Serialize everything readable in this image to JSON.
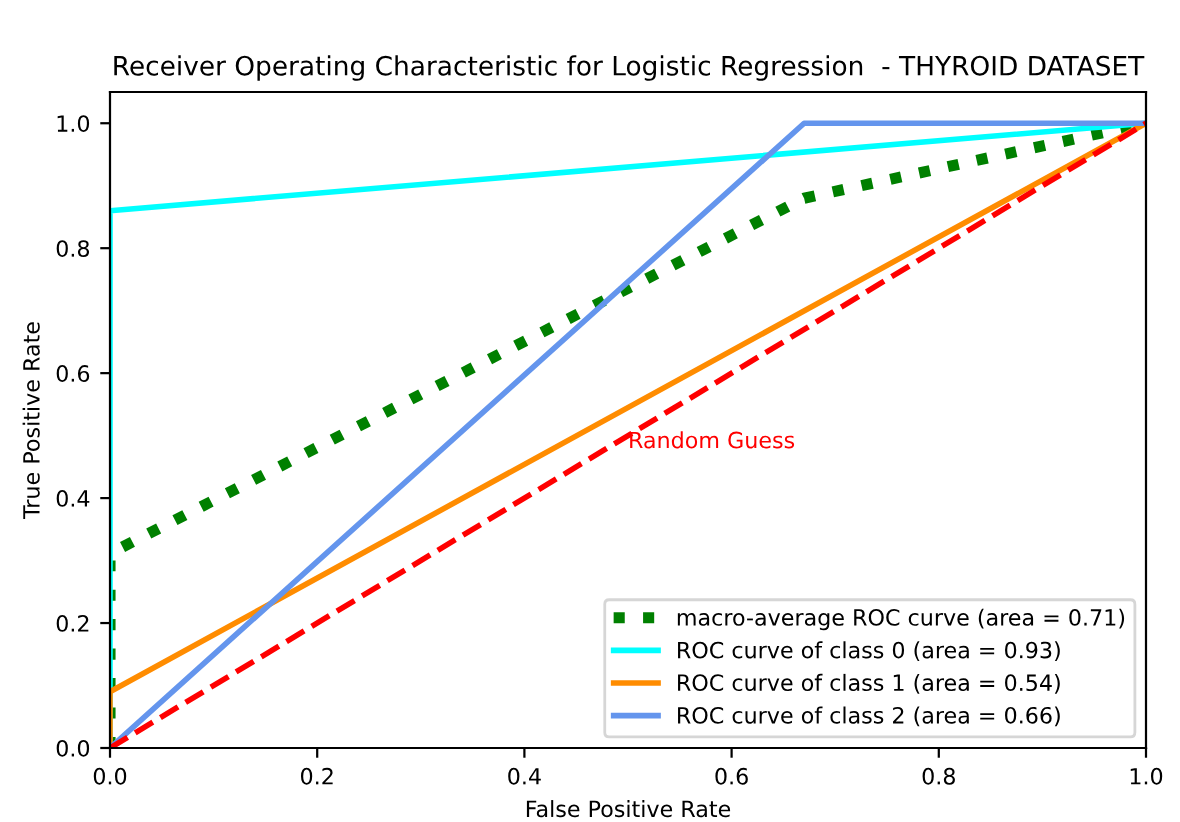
{
  "chart_data": {
    "type": "line",
    "title": "Receiver Operating Characteristic for Logistic Regression  - THYROID DATASET",
    "xlabel": "False Positive Rate",
    "ylabel": "True Positive Rate",
    "xlim": [
      0.0,
      1.0
    ],
    "ylim": [
      0.0,
      1.05
    ],
    "xticks": [
      {
        "value": 0,
        "label": "0.0"
      },
      0.2,
      0.4,
      0.6,
      0.8,
      {
        "value": 1,
        "label": "1.0"
      }
    ],
    "yticks": [
      {
        "value": 0,
        "label": "0.0"
      },
      0.2,
      0.4,
      0.6,
      0.8,
      {
        "value": 1,
        "label": "1.0"
      }
    ],
    "grid": false,
    "legend": "bottom right",
    "marker": "none",
    "series": [
      {
        "name": "macro-average ROC curve (area = 0.71)",
        "color": "#008000",
        "line_style": "dotted",
        "x": [
          0,
          0,
          0.01,
          0.67,
          1
        ],
        "values": [
          0,
          0.3,
          0.32,
          0.88,
          1
        ]
      },
      {
        "name": "ROC curve of class 0 (area = 0.93)",
        "color": "#00ffff",
        "line_style": "solid",
        "x": [
          0,
          0,
          1
        ],
        "values": [
          0,
          0.86,
          1
        ]
      },
      {
        "name": "ROC curve of class 1 (area = 0.54)",
        "color": "#ff8c00",
        "line_style": "solid",
        "x": [
          0,
          0,
          1
        ],
        "values": [
          0,
          0.09,
          1
        ]
      },
      {
        "name": "ROC curve of class 2 (area = 0.66)",
        "color": "#6495ed",
        "line_style": "solid",
        "x": [
          0,
          0.67,
          1
        ],
        "values": [
          0,
          1,
          1
        ]
      },
      {
        "color": "#ff0000",
        "line_style": "dashed",
        "x": [
          0,
          1
        ],
        "values": [
          0,
          1
        ]
      }
    ],
    "annotations": [
      {
        "text": "Random Guess",
        "x": 0.5,
        "y": 0.48
      }
    ]
  }
}
